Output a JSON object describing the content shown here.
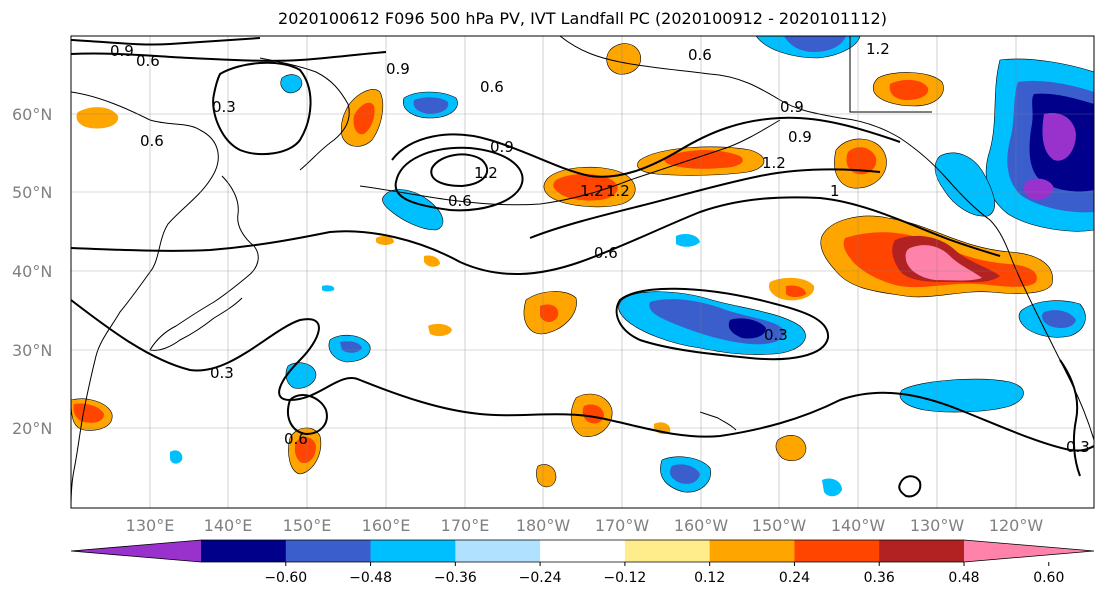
{
  "title": "2020100612 F096 500 hPa PV, IVT Landfall PC (2020100912 - 2020101112)",
  "lat_labels": [
    "60°N",
    "50°N",
    "40°N",
    "30°N",
    "20°N"
  ],
  "lon_labels": [
    "130°E",
    "140°E",
    "150°E",
    "160°E",
    "170°E",
    "180°W",
    "170°W",
    "160°W",
    "150°W",
    "140°W",
    "130°W",
    "120°W"
  ],
  "colorbar": {
    "ticks": [
      "−0.60",
      "−0.48",
      "−0.36",
      "−0.24",
      "−0.12",
      "0.12",
      "0.24",
      "0.36",
      "0.48",
      "0.60"
    ],
    "colors": [
      "#9932cc",
      "#00008b",
      "#3a5fcd",
      "#00bfff",
      "#b0e2ff",
      "#ffffff",
      "#ffec8b",
      "#ffa500",
      "#ff4500",
      "#b22222",
      "#ff82ab"
    ]
  },
  "contour_labels": [
    "0.9",
    "0.6",
    "0.9",
    "0.6",
    "0.3",
    "0.6",
    "0.9",
    "1.2",
    "0.6",
    "1.2",
    "0.6",
    "0.6",
    "1.2",
    "0.9",
    "1.2",
    "1",
    "0.3",
    "0.3",
    "0.6",
    "0.3",
    "0.9",
    "1.2"
  ]
}
